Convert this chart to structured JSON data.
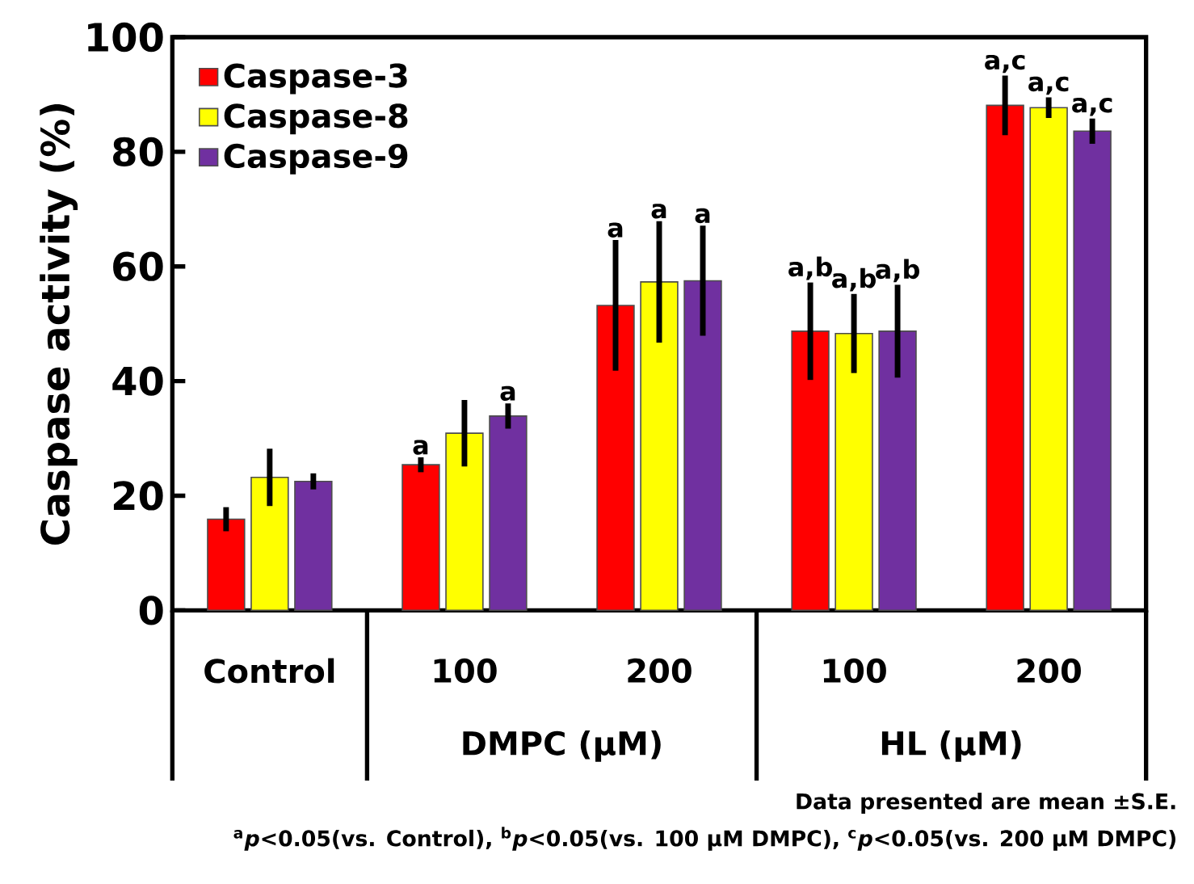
{
  "chart_data": {
    "type": "bar",
    "ylabel": "Caspase activity (%)",
    "categories": [
      "Control",
      "100",
      "200",
      "100",
      "200"
    ],
    "series": [
      {
        "name": "Caspase-3",
        "color": "#ff0000",
        "values": [
          15.9,
          25.4,
          53.2,
          48.7,
          88.1
        ],
        "errors": [
          2.1,
          1.3,
          11.4,
          8.5,
          5.2
        ],
        "value_labels": [
          null,
          "a",
          "a",
          "a,b",
          "a,c"
        ]
      },
      {
        "name": "Caspase-8",
        "color": "#ffff00",
        "values": [
          23.2,
          30.9,
          57.3,
          48.3,
          87.7
        ],
        "errors": [
          5.0,
          5.8,
          10.6,
          6.9,
          1.8
        ],
        "value_labels": [
          null,
          null,
          "a",
          "a,b",
          "a,c"
        ]
      },
      {
        "name": "Caspase-9",
        "color": "#7030a0",
        "values": [
          22.5,
          33.9,
          57.5,
          48.7,
          83.6
        ],
        "errors": [
          1.4,
          2.2,
          9.6,
          8.1,
          2.2
        ],
        "value_labels": [
          null,
          "a",
          "a",
          "a,b",
          "a,c"
        ]
      }
    ],
    "ylim": [
      0,
      100
    ],
    "yticks": [
      0,
      20,
      40,
      60,
      80,
      100
    ],
    "grid": false,
    "legend": "top left",
    "annotations": [
      "DMPC (μM)",
      "HL (μM)",
      "Data presented are mean ±S.E.",
      "$^{a}$*p*<0.05(vs. Control), $^{b}$*p*<0.05(vs. 100 μM DMPC), $^{c}$*p*<0.05(vs. 200 μM DMPC)"
    ]
  }
}
